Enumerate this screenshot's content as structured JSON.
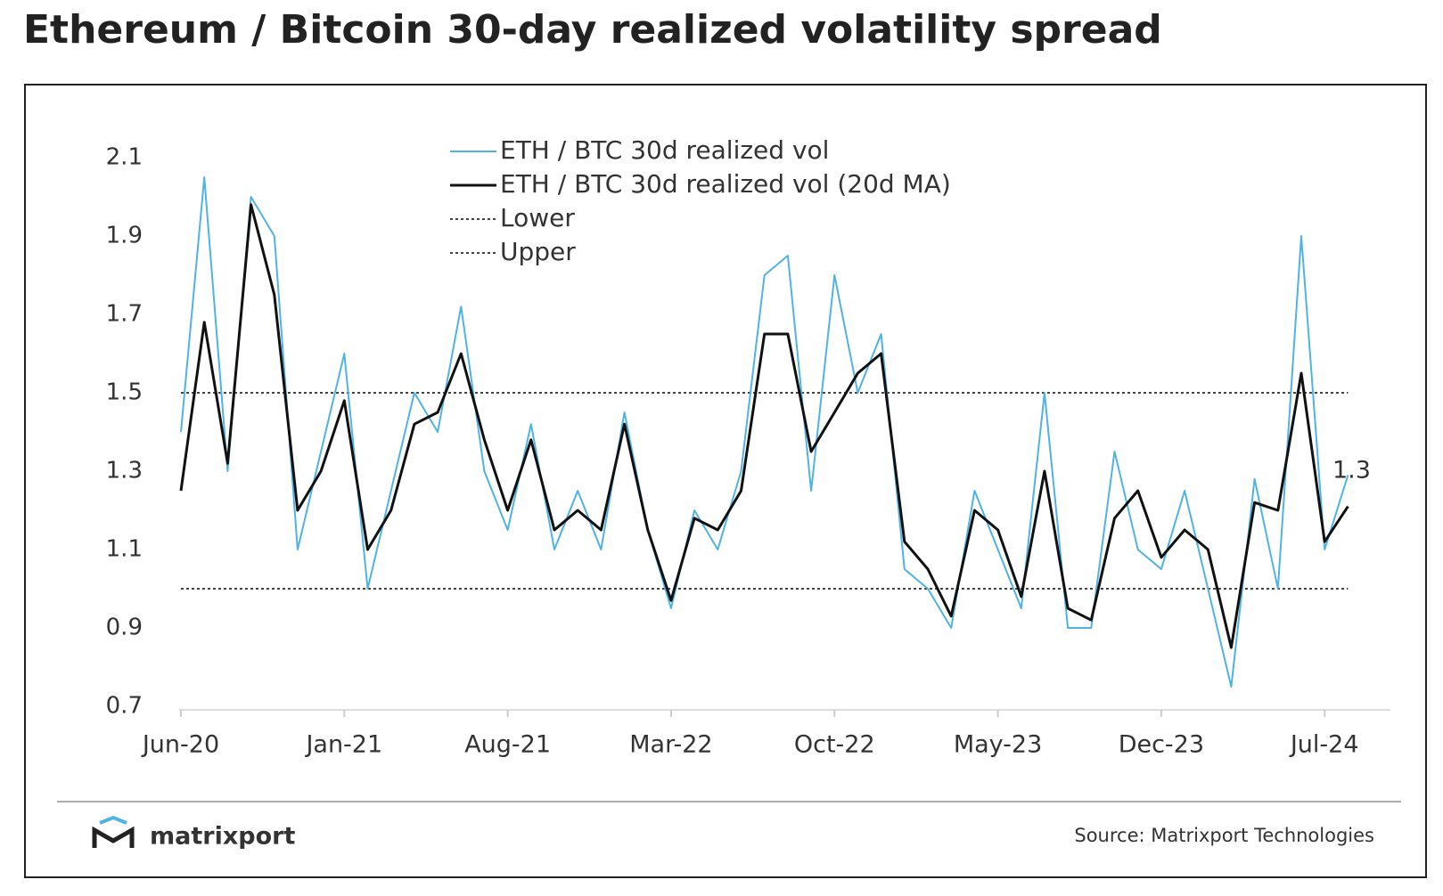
{
  "chart_data": {
    "type": "line",
    "title": "Ethereum / Bitcoin 30-day realized volatility spread",
    "x": [
      "2020-06",
      "2020-07",
      "2020-08",
      "2020-09",
      "2020-10",
      "2020-11",
      "2020-12",
      "2021-01",
      "2021-02",
      "2021-03",
      "2021-04",
      "2021-05",
      "2021-06",
      "2021-07",
      "2021-08",
      "2021-09",
      "2021-10",
      "2021-11",
      "2021-12",
      "2022-01",
      "2022-02",
      "2022-03",
      "2022-04",
      "2022-05",
      "2022-06",
      "2022-07",
      "2022-08",
      "2022-09",
      "2022-10",
      "2022-11",
      "2022-12",
      "2023-01",
      "2023-02",
      "2023-03",
      "2023-04",
      "2023-05",
      "2023-06",
      "2023-07",
      "2023-08",
      "2023-09",
      "2023-10",
      "2023-11",
      "2023-12",
      "2024-01",
      "2024-02",
      "2024-03",
      "2024-04",
      "2024-05",
      "2024-06",
      "2024-07",
      "2024-08"
    ],
    "series": [
      {
        "name": "ETH / BTC 30d realized vol",
        "color": "#4fb3e3",
        "width": 2,
        "values": [
          1.4,
          2.05,
          1.3,
          2.0,
          1.9,
          1.1,
          1.35,
          1.6,
          1.0,
          1.25,
          1.5,
          1.4,
          1.72,
          1.3,
          1.15,
          1.42,
          1.1,
          1.25,
          1.1,
          1.45,
          1.15,
          0.95,
          1.2,
          1.1,
          1.3,
          1.8,
          1.85,
          1.25,
          1.8,
          1.5,
          1.65,
          1.05,
          1.0,
          0.9,
          1.25,
          1.1,
          0.95,
          1.5,
          0.9,
          0.9,
          1.35,
          1.1,
          1.05,
          1.25,
          1.0,
          0.75,
          1.28,
          1.0,
          1.9,
          1.1,
          1.29
        ]
      },
      {
        "name": "ETH / BTC 30d realized vol (20d MA)",
        "color": "#111111",
        "width": 3,
        "values": [
          1.25,
          1.68,
          1.32,
          1.98,
          1.75,
          1.2,
          1.3,
          1.48,
          1.1,
          1.2,
          1.42,
          1.45,
          1.6,
          1.38,
          1.2,
          1.38,
          1.15,
          1.2,
          1.15,
          1.42,
          1.15,
          0.97,
          1.18,
          1.15,
          1.25,
          1.65,
          1.65,
          1.35,
          1.45,
          1.55,
          1.6,
          1.12,
          1.05,
          0.93,
          1.2,
          1.15,
          0.98,
          1.3,
          0.95,
          0.92,
          1.18,
          1.25,
          1.08,
          1.15,
          1.1,
          0.85,
          1.22,
          1.2,
          1.55,
          1.12,
          1.21
        ]
      }
    ],
    "reference_lines": [
      {
        "name": "Lower",
        "value": 1.0,
        "color": "#444444"
      },
      {
        "name": "Upper",
        "value": 1.5,
        "color": "#444444"
      }
    ],
    "end_label": 1.3,
    "ylim": [
      0.7,
      2.1
    ],
    "yticks": [
      0.7,
      0.9,
      1.1,
      1.3,
      1.5,
      1.7,
      1.9,
      2.1
    ],
    "xticks": [
      {
        "value": "2020-06",
        "label": "Jun-20"
      },
      {
        "value": "2021-01",
        "label": "Jan-21"
      },
      {
        "value": "2021-08",
        "label": "Aug-21"
      },
      {
        "value": "2022-03",
        "label": "Mar-22"
      },
      {
        "value": "2022-10",
        "label": "Oct-22"
      },
      {
        "value": "2023-05",
        "label": "May-23"
      },
      {
        "value": "2023-12",
        "label": "Dec-23"
      },
      {
        "value": "2024-07",
        "label": "Jul-24"
      }
    ],
    "logo": "matrixport",
    "source": "Source: Matrixport Technologies"
  }
}
